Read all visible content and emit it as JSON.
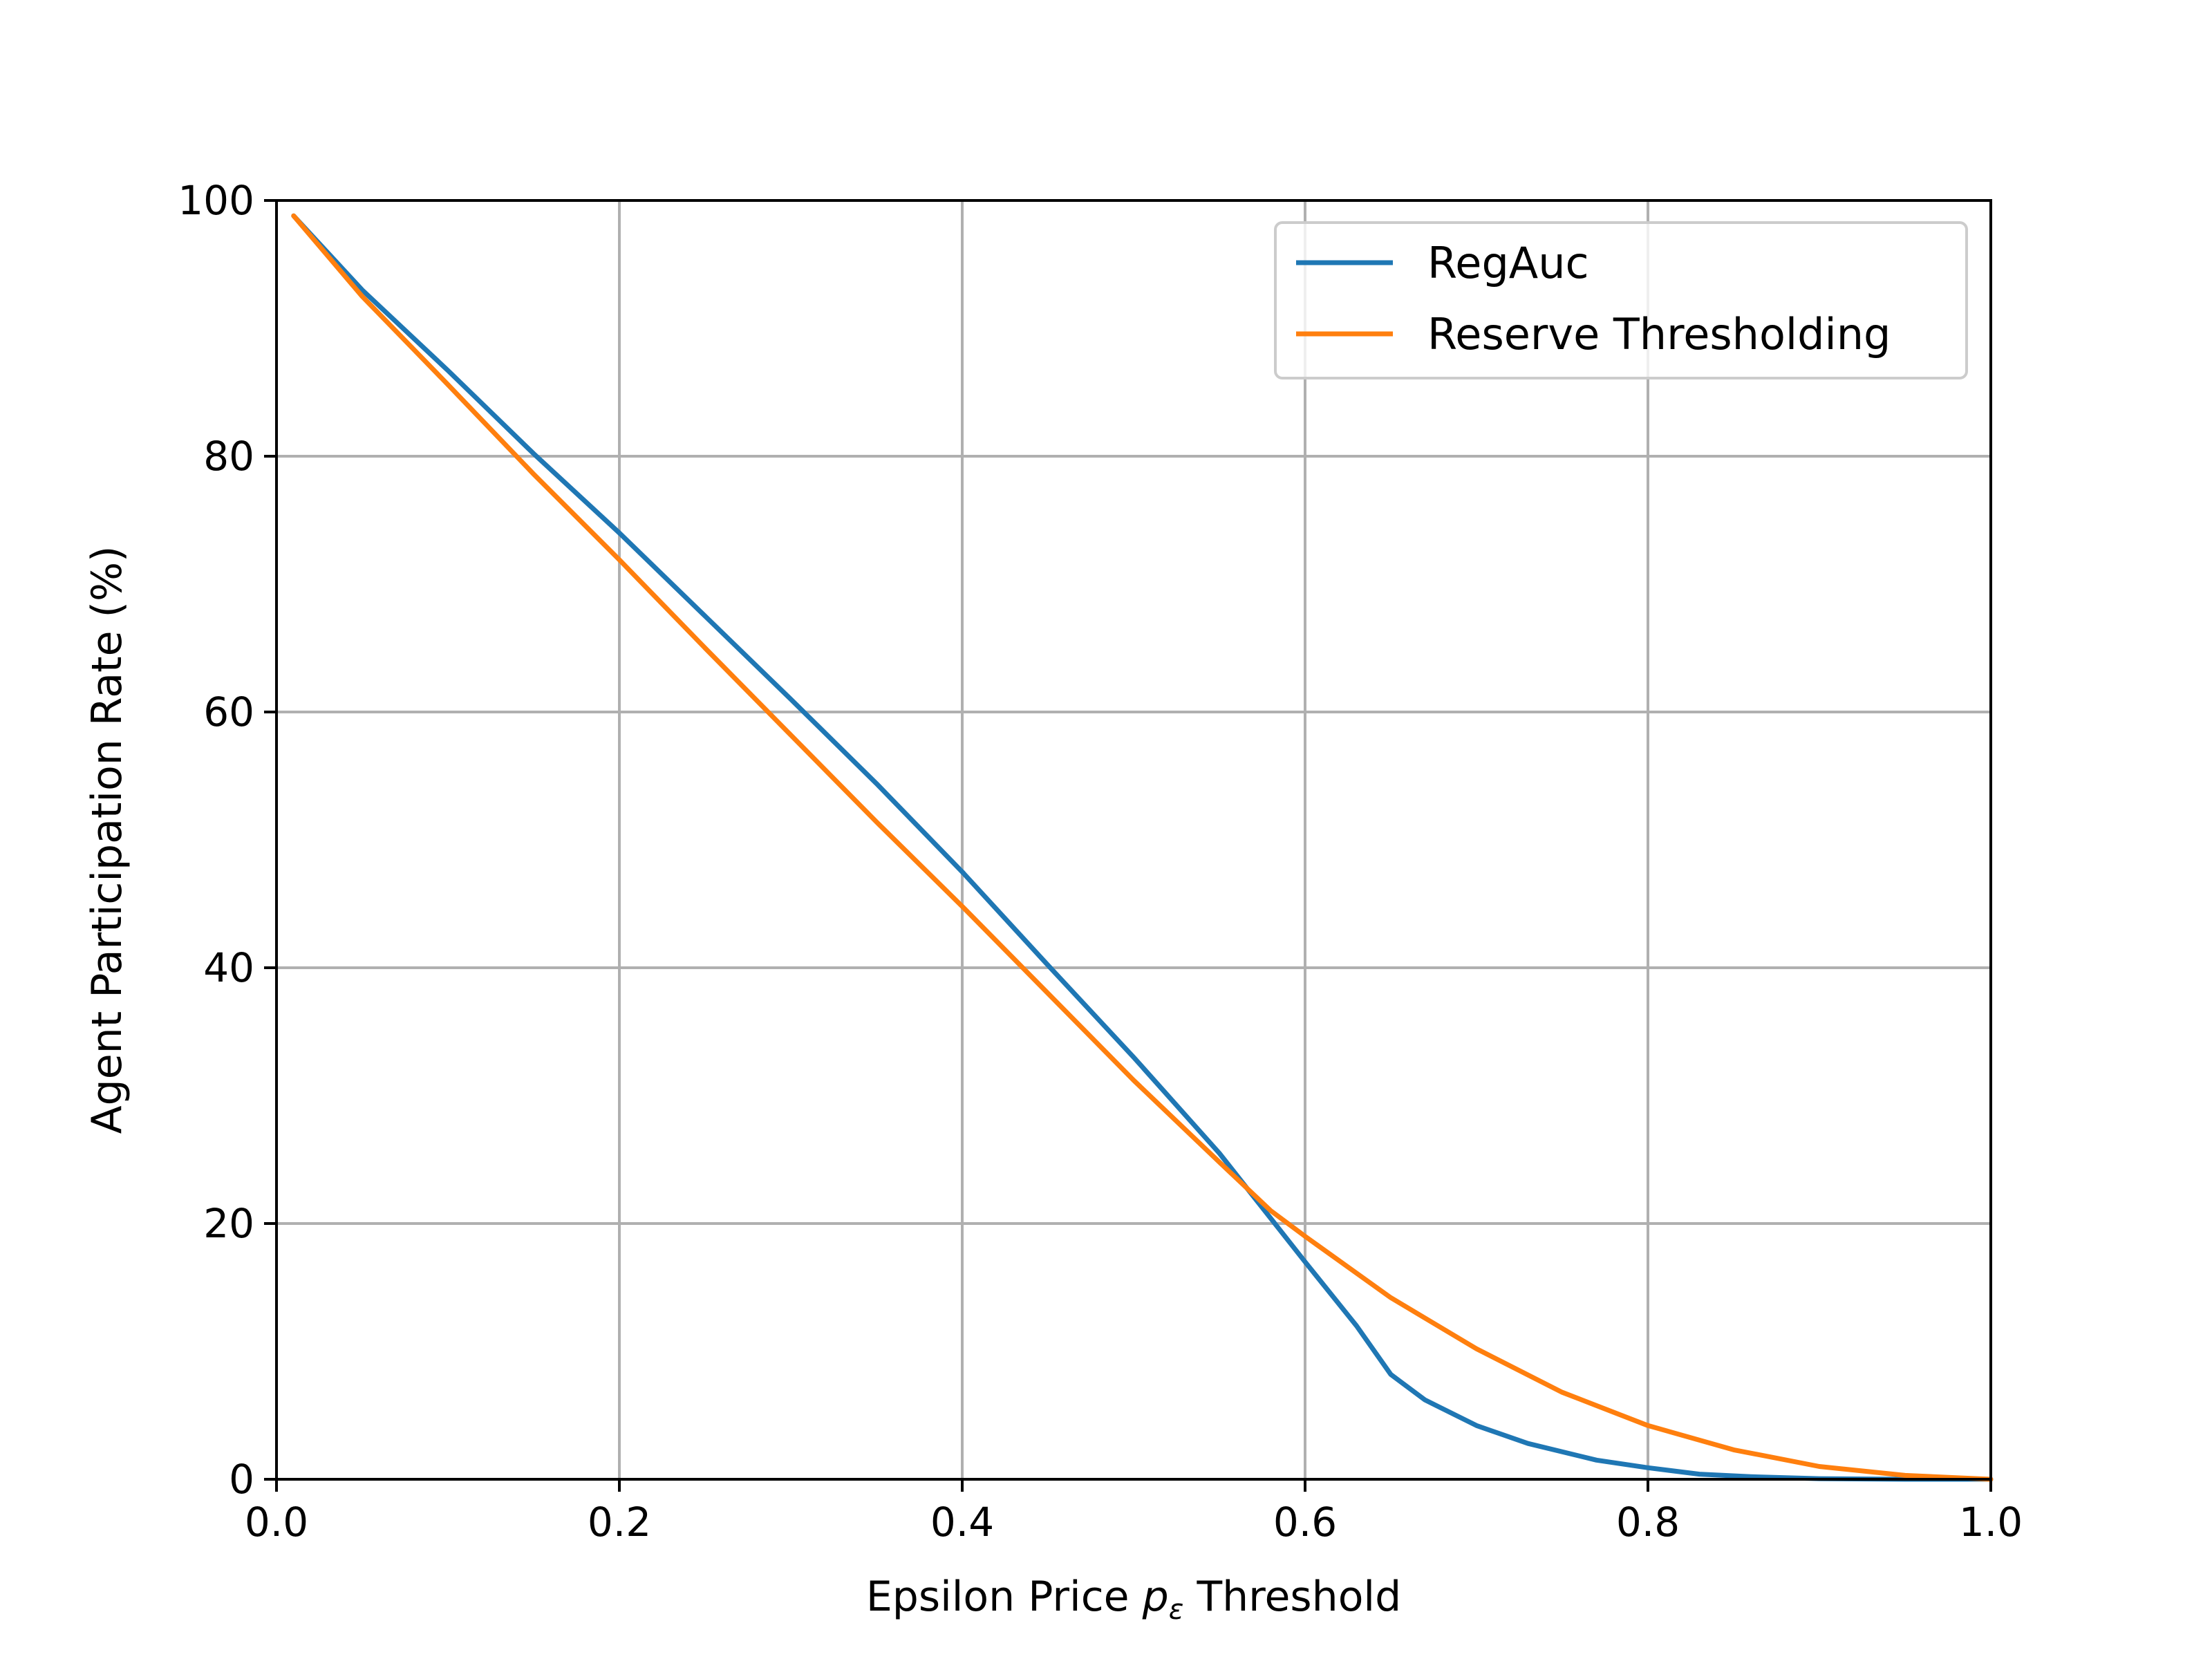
{
  "chart_data": {
    "type": "line",
    "title": "",
    "xlabel": "Epsilon Price p_ε Threshold",
    "xlabel_parts": {
      "before": "Epsilon Price ",
      "var": "p",
      "sub": "ε",
      "after": " Threshold"
    },
    "ylabel": "Agent Participation Rate (%)",
    "xlim": [
      0.0,
      1.0
    ],
    "ylim": [
      0,
      100
    ],
    "xticks": [
      0.0,
      0.2,
      0.4,
      0.6,
      0.8,
      1.0
    ],
    "xtick_labels": [
      "0.0",
      "0.2",
      "0.4",
      "0.6",
      "0.8",
      "1.0"
    ],
    "yticks": [
      0,
      20,
      40,
      60,
      80,
      100
    ],
    "ytick_labels": [
      "0",
      "20",
      "40",
      "60",
      "80",
      "100"
    ],
    "grid": true,
    "legend_position": "top-right",
    "series": [
      {
        "name": "RegAuc",
        "color": "#1f77b4",
        "x": [
          0.01,
          0.05,
          0.1,
          0.15,
          0.2,
          0.25,
          0.3,
          0.35,
          0.4,
          0.45,
          0.5,
          0.55,
          0.6,
          0.63,
          0.65,
          0.67,
          0.7,
          0.73,
          0.77,
          0.8,
          0.83,
          0.86,
          0.9,
          0.95,
          1.0
        ],
        "y": [
          98.8,
          93.0,
          86.7,
          80.2,
          74.0,
          67.5,
          61.0,
          54.4,
          47.5,
          40.2,
          33.0,
          25.5,
          17.0,
          12.0,
          8.2,
          6.2,
          4.2,
          2.8,
          1.5,
          0.9,
          0.4,
          0.2,
          0.05,
          0.0,
          0.0
        ]
      },
      {
        "name": "Reserve Thresholding",
        "color": "#ff7f0e",
        "x": [
          0.01,
          0.05,
          0.1,
          0.15,
          0.2,
          0.25,
          0.3,
          0.35,
          0.4,
          0.45,
          0.5,
          0.55,
          0.58,
          0.6,
          0.65,
          0.7,
          0.75,
          0.8,
          0.85,
          0.9,
          0.95,
          1.0
        ],
        "y": [
          98.8,
          92.5,
          85.6,
          78.6,
          71.9,
          65.0,
          58.2,
          51.4,
          44.8,
          38.0,
          31.2,
          24.8,
          21.0,
          19.0,
          14.2,
          10.2,
          6.8,
          4.2,
          2.3,
          1.0,
          0.3,
          0.0
        ]
      }
    ]
  }
}
